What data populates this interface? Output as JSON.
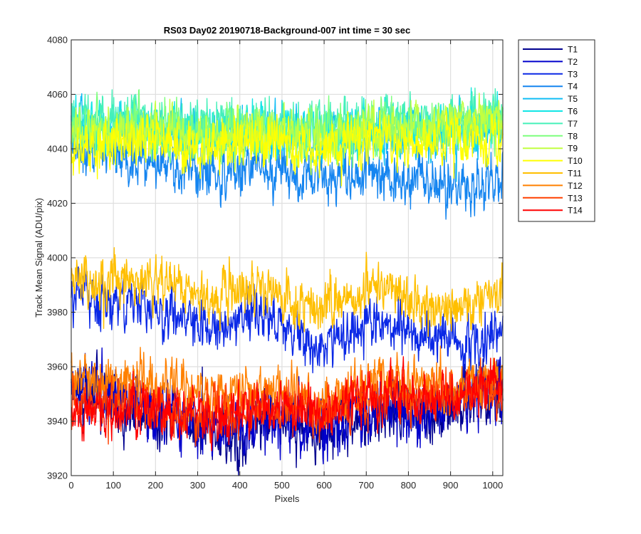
{
  "chart_data": {
    "type": "line",
    "title": "RS03 Day02 20190718-Background-007 int time = 30 sec",
    "xlabel": "Pixels",
    "ylabel": "Track Mean Signal (ADU/pix)",
    "xlim": [
      0,
      1024
    ],
    "ylim": [
      3920,
      4080
    ],
    "xticks": [
      0,
      100,
      200,
      300,
      400,
      500,
      600,
      700,
      800,
      900,
      1000
    ],
    "yticks": [
      3920,
      3940,
      3960,
      3980,
      4000,
      4020,
      4040,
      4060,
      4080
    ],
    "grid": true,
    "legend_position": "outside-top-right",
    "x_sample": [
      0,
      64,
      128,
      192,
      256,
      320,
      384,
      448,
      512,
      576,
      640,
      704,
      768,
      832,
      896,
      960,
      1023
    ],
    "series": [
      {
        "name": "T1",
        "color": "#00008f",
        "trend": [
          3950,
          3949,
          3947,
          3944,
          3941,
          3937,
          3937,
          3939,
          3938,
          3935,
          3938,
          3942,
          3943,
          3943,
          3945,
          3948,
          3951
        ],
        "noise": 5
      },
      {
        "name": "T2",
        "color": "#0000cc",
        "trend": [
          3953,
          3951,
          3948,
          3945,
          3942,
          3939,
          3938,
          3940,
          3939,
          3937,
          3939,
          3943,
          3944,
          3944,
          3946,
          3949,
          3953
        ],
        "noise": 5
      },
      {
        "name": "T3",
        "color": "#0a28e6",
        "trend": [
          3988,
          3984,
          3983,
          3981,
          3978,
          3973,
          3977,
          3978,
          3974,
          3967,
          3970,
          3977,
          3975,
          3970,
          3969,
          3969,
          3974
        ],
        "noise": 4
      },
      {
        "name": "T4",
        "color": "#1585f0",
        "trend": [
          4040,
          4039,
          4038,
          4036,
          4033,
          4031,
          4031,
          4033,
          4031,
          4029,
          4030,
          4032,
          4031,
          4029,
          4026,
          4027,
          4029
        ],
        "noise": 4
      },
      {
        "name": "T5",
        "color": "#10bdf5",
        "trend": [
          4046,
          4047,
          4047,
          4046,
          4045,
          4044,
          4045,
          4046,
          4045,
          4044,
          4045,
          4046,
          4046,
          4045,
          4045,
          4046,
          4047
        ],
        "noise": 4
      },
      {
        "name": "T6",
        "color": "#12e6e6",
        "trend": [
          4048,
          4049,
          4049,
          4048,
          4047,
          4046,
          4047,
          4048,
          4047,
          4046,
          4047,
          4048,
          4048,
          4048,
          4048,
          4049,
          4050
        ],
        "noise": 4
      },
      {
        "name": "T7",
        "color": "#45f0b9",
        "trend": [
          4050,
          4051,
          4051,
          4050,
          4049,
          4048,
          4049,
          4050,
          4049,
          4048,
          4049,
          4050,
          4050,
          4050,
          4051,
          4052,
          4053
        ],
        "noise": 4
      },
      {
        "name": "T8",
        "color": "#7dff7d",
        "trend": [
          4047,
          4048,
          4048,
          4047,
          4046,
          4045,
          4046,
          4047,
          4046,
          4045,
          4046,
          4047,
          4047,
          4048,
          4049,
          4050,
          4050
        ],
        "noise": 4
      },
      {
        "name": "T9",
        "color": "#c2ff40",
        "trend": [
          4045,
          4046,
          4047,
          4046,
          4045,
          4044,
          4045,
          4046,
          4045,
          4044,
          4045,
          4046,
          4047,
          4048,
          4050,
          4051,
          4052
        ],
        "noise": 4
      },
      {
        "name": "T10",
        "color": "#ffff00",
        "trend": [
          4038,
          4040,
          4043,
          4043,
          4041,
          4039,
          4041,
          4043,
          4041,
          4039,
          4041,
          4043,
          4043,
          4042,
          4043,
          4044,
          4044
        ],
        "noise": 4
      },
      {
        "name": "T11",
        "color": "#ffbf00",
        "trend": [
          3991,
          3990,
          3992,
          3992,
          3988,
          3985,
          3988,
          3989,
          3985,
          3980,
          3983,
          3990,
          3988,
          3983,
          3982,
          3983,
          3988
        ],
        "noise": 4
      },
      {
        "name": "T12",
        "color": "#ff8000",
        "trend": [
          3956,
          3955,
          3956,
          3955,
          3952,
          3949,
          3951,
          3953,
          3951,
          3948,
          3950,
          3955,
          3955,
          3953,
          3952,
          3953,
          3956
        ],
        "noise": 4
      },
      {
        "name": "T13",
        "color": "#ff4000",
        "trend": [
          3947,
          3946,
          3946,
          3945,
          3944,
          3943,
          3944,
          3945,
          3945,
          3944,
          3946,
          3948,
          3949,
          3949,
          3949,
          3951,
          3953
        ],
        "noise": 4
      },
      {
        "name": "T14",
        "color": "#ff0000",
        "trend": [
          3943,
          3943,
          3944,
          3944,
          3943,
          3942,
          3943,
          3944,
          3944,
          3944,
          3946,
          3948,
          3949,
          3949,
          3949,
          3951,
          3954
        ],
        "noise": 4
      }
    ]
  }
}
